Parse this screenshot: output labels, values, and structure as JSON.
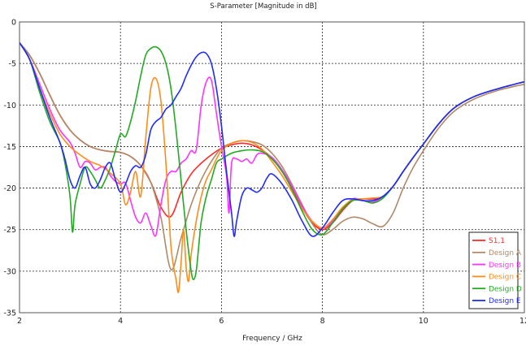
{
  "chart_data": {
    "type": "line",
    "title": "S-Parameter [Magnitude in dB]",
    "xlabel": "Frequency / GHz",
    "ylabel": "",
    "xlim": [
      2,
      12
    ],
    "ylim": [
      -35,
      0
    ],
    "xticks": [
      2,
      4,
      6,
      8,
      10,
      12
    ],
    "yticks": [
      0,
      -5,
      -10,
      -15,
      -20,
      -25,
      -30,
      -35
    ],
    "grid": true,
    "legend_position": "bottom-right",
    "series": [
      {
        "name": "S1,1",
        "color": "#ff2a2a",
        "x": [
          2,
          2.2,
          2.4,
          2.6,
          2.8,
          3.0,
          3.2,
          3.4,
          3.6,
          3.8,
          4.0,
          4.2,
          4.4,
          4.6,
          4.8,
          5.0,
          5.2,
          5.4,
          5.6,
          5.8,
          6.0,
          6.2,
          6.4,
          6.6,
          6.8,
          7.0,
          7.2,
          7.4,
          7.6,
          7.8,
          8.0,
          8.2,
          8.4,
          8.6,
          8.8,
          9.0,
          9.2,
          9.4,
          9.6,
          9.8,
          10.0,
          10.3,
          10.6,
          11.0,
          11.5,
          12.0
        ],
        "y": [
          -2.5,
          -4.0,
          -6.2,
          -8.8,
          -11.2,
          -13.0,
          -14.2,
          -15.0,
          -15.4,
          -15.6,
          -15.7,
          -16.2,
          -17.3,
          -19.3,
          -22.3,
          -23.4,
          -20.5,
          -18.3,
          -17.0,
          -16.0,
          -15.2,
          -14.8,
          -14.6,
          -14.8,
          -15.4,
          -16.4,
          -18.0,
          -20.0,
          -22.4,
          -24.2,
          -25.0,
          -24.2,
          -22.7,
          -21.5,
          -21.3,
          -21.3,
          -21.0,
          -19.8,
          -18.0,
          -16.3,
          -14.7,
          -12.3,
          -10.4,
          -9.0,
          -8.0,
          -7.2
        ]
      },
      {
        "name": "Design A",
        "color": "#b08968",
        "x": [
          2,
          2.2,
          2.4,
          2.6,
          2.8,
          3.0,
          3.2,
          3.4,
          3.6,
          3.8,
          4.0,
          4.2,
          4.4,
          4.6,
          4.8,
          5.0,
          5.2,
          5.4,
          5.6,
          5.8,
          6.0,
          6.2,
          6.4,
          6.6,
          6.8,
          7.0,
          7.2,
          7.4,
          7.6,
          7.8,
          8.0,
          8.2,
          8.4,
          8.6,
          8.8,
          9.0,
          9.2,
          9.4,
          9.6,
          9.8,
          10.0,
          10.3,
          10.6,
          11.0,
          11.5,
          12.0
        ],
        "y": [
          -2.5,
          -4.0,
          -6.2,
          -8.8,
          -11.2,
          -13.0,
          -14.2,
          -15.0,
          -15.4,
          -15.6,
          -15.7,
          -16.2,
          -17.3,
          -19.3,
          -23.5,
          -29.8,
          -26.0,
          -22.0,
          -19.0,
          -16.8,
          -15.2,
          -14.6,
          -14.3,
          -14.4,
          -14.8,
          -15.8,
          -17.4,
          -19.6,
          -22.0,
          -24.3,
          -25.6,
          -25.0,
          -24.0,
          -23.5,
          -23.7,
          -24.3,
          -24.6,
          -23.0,
          -20.0,
          -17.5,
          -15.5,
          -12.8,
          -10.8,
          -9.3,
          -8.2,
          -7.5
        ]
      },
      {
        "name": "Design B",
        "color": "#ff33ff",
        "x": [
          2,
          2.2,
          2.4,
          2.6,
          2.8,
          3.0,
          3.1,
          3.2,
          3.3,
          3.4,
          3.5,
          3.6,
          3.7,
          3.8,
          3.9,
          4.0,
          4.1,
          4.2,
          4.3,
          4.4,
          4.5,
          4.6,
          4.7,
          4.8,
          4.9,
          5.0,
          5.1,
          5.2,
          5.3,
          5.4,
          5.5,
          5.6,
          5.7,
          5.8,
          5.9,
          6.0,
          6.1,
          6.15,
          6.2,
          6.3,
          6.4,
          6.5,
          6.6,
          6.7,
          6.8,
          7.0,
          7.2,
          7.4,
          7.6,
          7.8,
          8.0,
          8.2,
          8.4,
          8.6,
          8.8,
          9.0,
          9.2,
          9.4,
          9.6,
          9.8,
          10.0,
          10.3,
          10.6,
          11.0,
          11.5,
          12.0
        ],
        "y": [
          -2.5,
          -4.5,
          -7.5,
          -10.5,
          -13.0,
          -14.5,
          -15.8,
          -17.5,
          -16.8,
          -17.0,
          -17.8,
          -17.5,
          -17.5,
          -18.5,
          -19.2,
          -19.5,
          -19.4,
          -21.5,
          -23.5,
          -24.2,
          -23.0,
          -24.5,
          -25.7,
          -22.0,
          -19.0,
          -18.0,
          -18.0,
          -17.0,
          -16.5,
          -15.5,
          -15.4,
          -10.0,
          -7.2,
          -7.0,
          -11.0,
          -15.0,
          -18.5,
          -23.0,
          -17.0,
          -16.5,
          -16.8,
          -16.5,
          -17.0,
          -16.0,
          -15.8,
          -16.3,
          -17.8,
          -19.8,
          -22.2,
          -24.0,
          -24.8,
          -24.0,
          -22.5,
          -21.3,
          -21.5,
          -21.7,
          -21.0,
          -19.8,
          -18.0,
          -16.3,
          -14.7,
          -12.3,
          -10.4,
          -9.0,
          -8.0,
          -7.2
        ]
      },
      {
        "name": "Design C",
        "color": "#ff8c1a",
        "x": [
          2,
          2.2,
          2.4,
          2.6,
          2.8,
          3.0,
          3.2,
          3.4,
          3.6,
          3.8,
          4.0,
          4.1,
          4.2,
          4.3,
          4.4,
          4.5,
          4.6,
          4.7,
          4.8,
          4.9,
          5.0,
          5.1,
          5.15,
          5.2,
          5.25,
          5.3,
          5.35,
          5.4,
          5.5,
          5.6,
          5.7,
          5.8,
          5.9,
          6.0,
          6.2,
          6.4,
          6.6,
          6.8,
          7.0,
          7.2,
          7.4,
          7.6,
          7.8,
          8.0,
          8.2,
          8.4,
          8.6,
          8.8,
          9.0,
          9.2,
          9.4,
          9.6,
          9.8,
          10.0,
          10.3,
          10.6,
          11.0,
          11.5,
          12.0
        ],
        "y": [
          -2.5,
          -4.5,
          -8.0,
          -11.0,
          -13.5,
          -15.0,
          -16.0,
          -16.8,
          -17.3,
          -18.2,
          -19.5,
          -22.0,
          -20.5,
          -18.0,
          -21.0,
          -14.0,
          -8.0,
          -6.8,
          -9.5,
          -17.0,
          -27.0,
          -31.0,
          -32.5,
          -29.0,
          -25.0,
          -29.5,
          -31.2,
          -28.0,
          -24.0,
          -21.0,
          -19.0,
          -17.8,
          -16.5,
          -15.5,
          -14.6,
          -14.3,
          -14.5,
          -15.3,
          -16.8,
          -18.5,
          -20.5,
          -22.5,
          -24.0,
          -24.8,
          -23.8,
          -22.3,
          -21.4,
          -21.3,
          -21.2,
          -21.0,
          -19.8,
          -18.0,
          -16.3,
          -14.7,
          -12.3,
          -10.4,
          -9.0,
          -8.0,
          -7.2
        ]
      },
      {
        "name": "Design D",
        "color": "#22aa22",
        "x": [
          2,
          2.2,
          2.4,
          2.6,
          2.8,
          2.9,
          3.0,
          3.05,
          3.1,
          3.2,
          3.3,
          3.4,
          3.5,
          3.6,
          3.7,
          3.8,
          3.9,
          4.0,
          4.1,
          4.2,
          4.3,
          4.4,
          4.5,
          4.6,
          4.7,
          4.8,
          4.9,
          5.0,
          5.1,
          5.2,
          5.3,
          5.4,
          5.45,
          5.5,
          5.55,
          5.6,
          5.7,
          5.8,
          5.9,
          6.0,
          6.2,
          6.4,
          6.6,
          6.8,
          7.0,
          7.2,
          7.4,
          7.6,
          7.8,
          8.0,
          8.2,
          8.4,
          8.6,
          8.8,
          9.0,
          9.2,
          9.4,
          9.6,
          9.8,
          10.0,
          10.3,
          10.6,
          11.0,
          11.5,
          12.0
        ],
        "y": [
          -2.5,
          -4.5,
          -8.5,
          -12.0,
          -14.5,
          -17.0,
          -21.0,
          -25.3,
          -22.0,
          -19.5,
          -17.5,
          -18.0,
          -19.0,
          -20.0,
          -19.0,
          -17.5,
          -15.5,
          -13.5,
          -13.8,
          -12.0,
          -9.5,
          -6.5,
          -4.0,
          -3.2,
          -3.0,
          -3.5,
          -5.0,
          -8.0,
          -13.0,
          -19.0,
          -25.0,
          -30.0,
          -31.0,
          -30.0,
          -27.0,
          -24.0,
          -21.0,
          -19.0,
          -17.0,
          -16.5,
          -15.8,
          -15.5,
          -15.4,
          -15.6,
          -16.5,
          -18.0,
          -20.2,
          -22.8,
          -25.0,
          -25.6,
          -24.2,
          -22.5,
          -21.5,
          -21.5,
          -21.8,
          -21.2,
          -19.8,
          -18.0,
          -16.3,
          -14.7,
          -12.3,
          -10.4,
          -9.0,
          -8.0,
          -7.2
        ]
      },
      {
        "name": "Design E",
        "color": "#1f2bff",
        "x": [
          2,
          2.2,
          2.4,
          2.6,
          2.8,
          2.9,
          3.0,
          3.1,
          3.2,
          3.3,
          3.4,
          3.5,
          3.6,
          3.7,
          3.8,
          3.9,
          4.0,
          4.1,
          4.2,
          4.3,
          4.4,
          4.5,
          4.6,
          4.7,
          4.8,
          4.9,
          5.0,
          5.1,
          5.2,
          5.3,
          5.4,
          5.5,
          5.6,
          5.7,
          5.8,
          5.9,
          6.0,
          6.1,
          6.2,
          6.25,
          6.3,
          6.4,
          6.5,
          6.6,
          6.7,
          6.8,
          6.9,
          7.0,
          7.2,
          7.4,
          7.6,
          7.8,
          8.0,
          8.2,
          8.4,
          8.6,
          8.8,
          9.0,
          9.2,
          9.4,
          9.6,
          9.8,
          10.0,
          10.3,
          10.6,
          11.0,
          11.5,
          12.0
        ],
        "y": [
          -2.5,
          -4.5,
          -8.0,
          -11.5,
          -14.5,
          -16.5,
          -19.0,
          -20.0,
          -18.5,
          -17.5,
          -19.5,
          -20.0,
          -19.0,
          -17.5,
          -17.0,
          -19.0,
          -20.5,
          -19.5,
          -18.0,
          -17.3,
          -17.5,
          -16.0,
          -13.0,
          -12.0,
          -11.5,
          -10.5,
          -10.0,
          -9.0,
          -8.0,
          -6.5,
          -5.2,
          -4.2,
          -3.7,
          -3.8,
          -5.0,
          -8.0,
          -12.5,
          -18.0,
          -23.0,
          -25.8,
          -24.0,
          -21.0,
          -20.0,
          -20.2,
          -20.5,
          -20.0,
          -18.8,
          -18.3,
          -19.5,
          -21.5,
          -24.0,
          -25.8,
          -24.8,
          -23.0,
          -21.5,
          -21.3,
          -21.5,
          -21.5,
          -21.0,
          -19.8,
          -18.0,
          -16.3,
          -14.7,
          -12.3,
          -10.4,
          -9.0,
          -8.0,
          -7.2
        ]
      }
    ]
  }
}
